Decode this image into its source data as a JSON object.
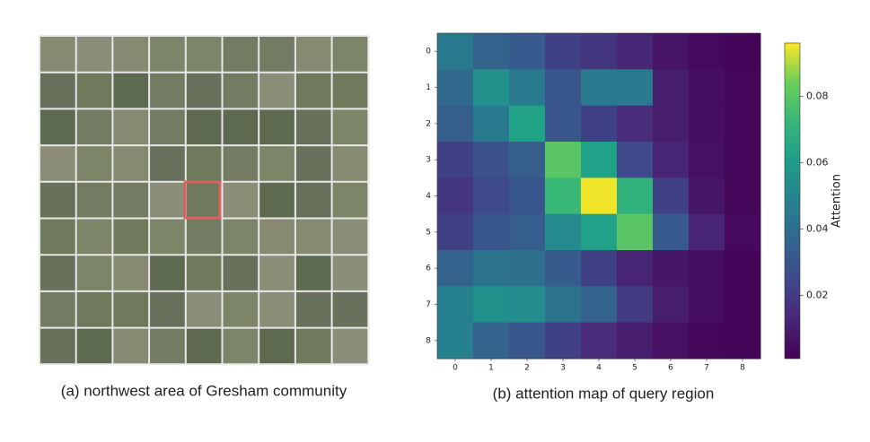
{
  "image_panel": {
    "caption": "(a) northwest area of Gresham community"
  },
  "chart_data": {
    "type": "heatmap",
    "caption": "(b) attention map of query region",
    "xcategories": [
      "0",
      "1",
      "2",
      "3",
      "4",
      "5",
      "6",
      "7",
      "8"
    ],
    "ycategories": [
      "0",
      "1",
      "2",
      "3",
      "4",
      "5",
      "6",
      "7",
      "8"
    ],
    "values": [
      [
        0.045,
        0.035,
        0.032,
        0.022,
        0.018,
        0.013,
        0.007,
        0.004,
        0.002
      ],
      [
        0.038,
        0.055,
        0.045,
        0.03,
        0.045,
        0.045,
        0.01,
        0.005,
        0.003
      ],
      [
        0.033,
        0.045,
        0.063,
        0.03,
        0.022,
        0.015,
        0.01,
        0.005,
        0.003
      ],
      [
        0.022,
        0.028,
        0.033,
        0.08,
        0.062,
        0.025,
        0.012,
        0.006,
        0.003
      ],
      [
        0.018,
        0.025,
        0.03,
        0.073,
        0.095,
        0.07,
        0.022,
        0.008,
        0.003
      ],
      [
        0.022,
        0.03,
        0.033,
        0.052,
        0.062,
        0.08,
        0.032,
        0.012,
        0.004
      ],
      [
        0.035,
        0.042,
        0.04,
        0.032,
        0.022,
        0.012,
        0.008,
        0.005,
        0.002
      ],
      [
        0.048,
        0.055,
        0.053,
        0.042,
        0.035,
        0.02,
        0.01,
        0.005,
        0.002
      ],
      [
        0.048,
        0.035,
        0.03,
        0.022,
        0.015,
        0.01,
        0.006,
        0.003,
        0.002
      ]
    ],
    "colormap": "viridis",
    "clim": [
      0.001,
      0.096
    ],
    "colorbar_ticks": [
      0.02,
      0.04,
      0.06,
      0.08
    ],
    "colorbar_label": "Attention"
  }
}
